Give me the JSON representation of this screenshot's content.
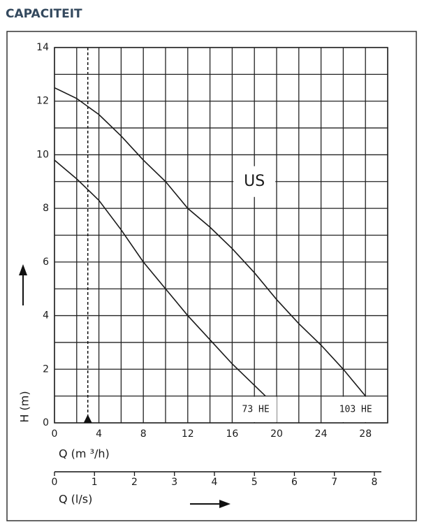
{
  "page_title": "CAPACITEIT",
  "chart_data": {
    "type": "line",
    "annotation": "US",
    "marker_x": 3,
    "xlabel": "Q (m ³/h)",
    "ylabel": "H (m)",
    "x2label": "Q (l/s)",
    "xlim": [
      0,
      30
    ],
    "ylim": [
      0,
      14
    ],
    "xticks": [
      0,
      4,
      8,
      12,
      16,
      20,
      24,
      28
    ],
    "yticks": [
      0,
      2,
      4,
      6,
      8,
      10,
      12,
      14
    ],
    "xgrid": [
      0,
      2,
      4,
      6,
      8,
      10,
      12,
      14,
      16,
      18,
      20,
      22,
      24,
      26,
      28,
      30
    ],
    "ygrid": [
      0,
      1,
      2,
      3,
      4,
      5,
      6,
      7,
      8,
      9,
      10,
      11,
      12,
      13,
      14
    ],
    "x2lim": [
      0,
      8.333
    ],
    "x2ticks": [
      0,
      1,
      2,
      3,
      4,
      5,
      6,
      7,
      8
    ],
    "color": "#1a1a1a",
    "series": [
      {
        "name": "73 HE",
        "x": [
          0,
          2,
          4,
          6,
          8,
          10,
          12,
          14,
          16,
          18,
          19
        ],
        "values": [
          9.8,
          9.1,
          8.3,
          7.2,
          6,
          5,
          4,
          3.1,
          2.2,
          1.4,
          1
        ]
      },
      {
        "name": "103 HE",
        "x": [
          0,
          2,
          4,
          6,
          8,
          10,
          12,
          14,
          16,
          18,
          20,
          22,
          24,
          26,
          28
        ],
        "values": [
          12.5,
          12.1,
          11.5,
          10.7,
          9.8,
          9,
          8,
          7.3,
          6.5,
          5.6,
          4.6,
          3.7,
          2.9,
          2,
          1
        ]
      }
    ]
  }
}
